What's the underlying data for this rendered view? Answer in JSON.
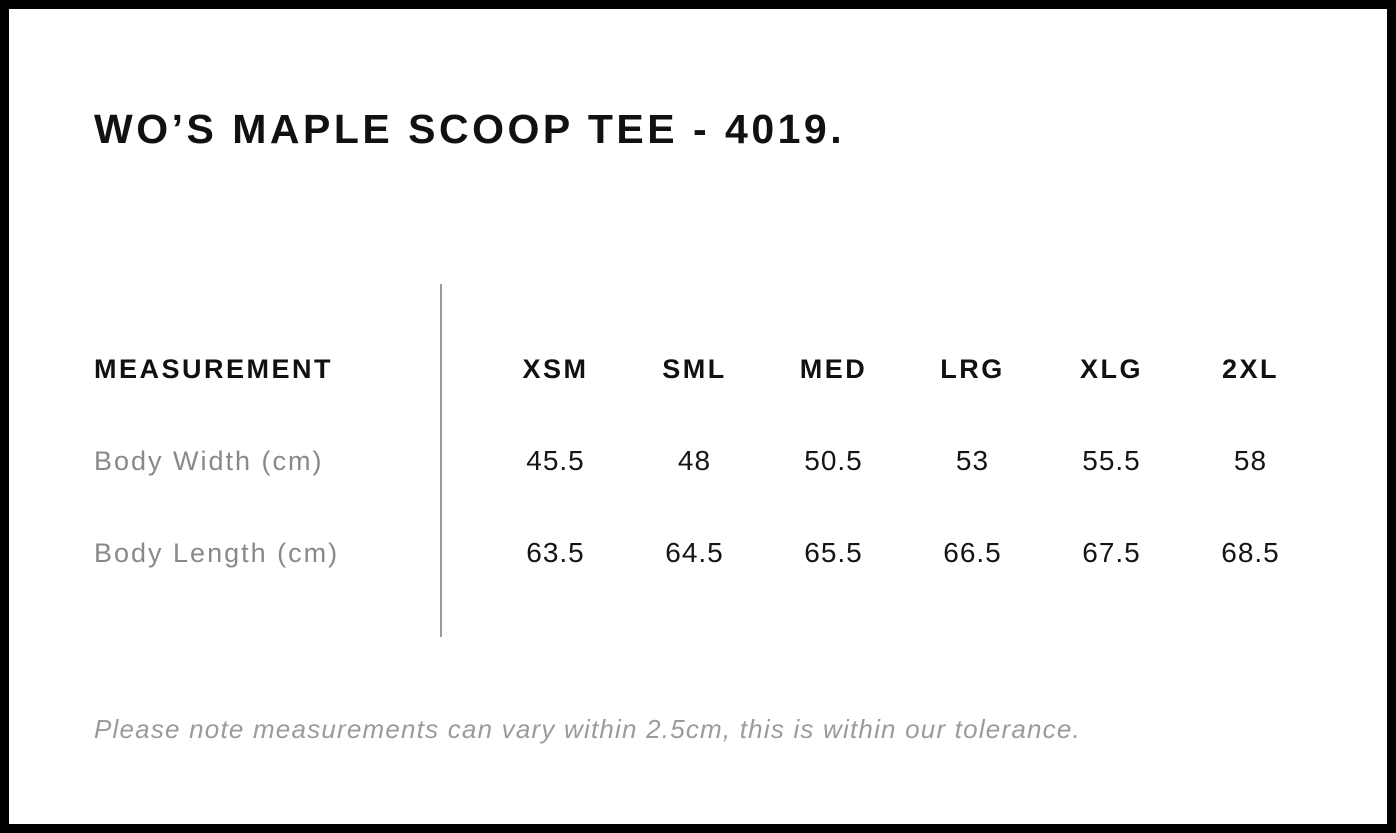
{
  "page": {
    "title": "WO’S MAPLE SCOOP TEE - 4019.",
    "note": "Please note measurements can vary within 2.5cm, this is within our tolerance."
  },
  "size_chart": {
    "header_label": "MEASUREMENT",
    "sizes": [
      "XSM",
      "SML",
      "MED",
      "LRG",
      "XLG",
      "2XL"
    ],
    "rows": [
      {
        "label": "Body Width (cm)",
        "values": [
          "45.5",
          "48",
          "50.5",
          "53",
          "55.5",
          "58"
        ]
      },
      {
        "label": "Body Length (cm)",
        "values": [
          "63.5",
          "64.5",
          "65.5",
          "66.5",
          "67.5",
          "68.5"
        ]
      }
    ]
  },
  "colors": {
    "border": "#000000",
    "heading_text": "#111111",
    "value_text": "#151515",
    "label_text": "#898989",
    "note_text": "#9b9b9b",
    "divider": "#9a9a9a",
    "background": "#ffffff"
  }
}
